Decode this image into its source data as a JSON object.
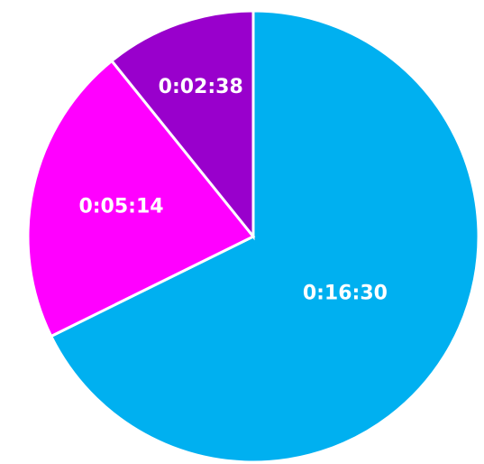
{
  "chart_data": {
    "type": "pie",
    "slices": [
      {
        "label": "0:16:30",
        "seconds": 990,
        "color": "#00b0f0"
      },
      {
        "label": "0:05:14",
        "seconds": 314,
        "color": "#ff00ff"
      },
      {
        "label": "0:02:38",
        "seconds": 158,
        "color": "#9900cc"
      }
    ],
    "direction": "clockwise",
    "start_angle": "12 o'clock",
    "legend": "none"
  }
}
